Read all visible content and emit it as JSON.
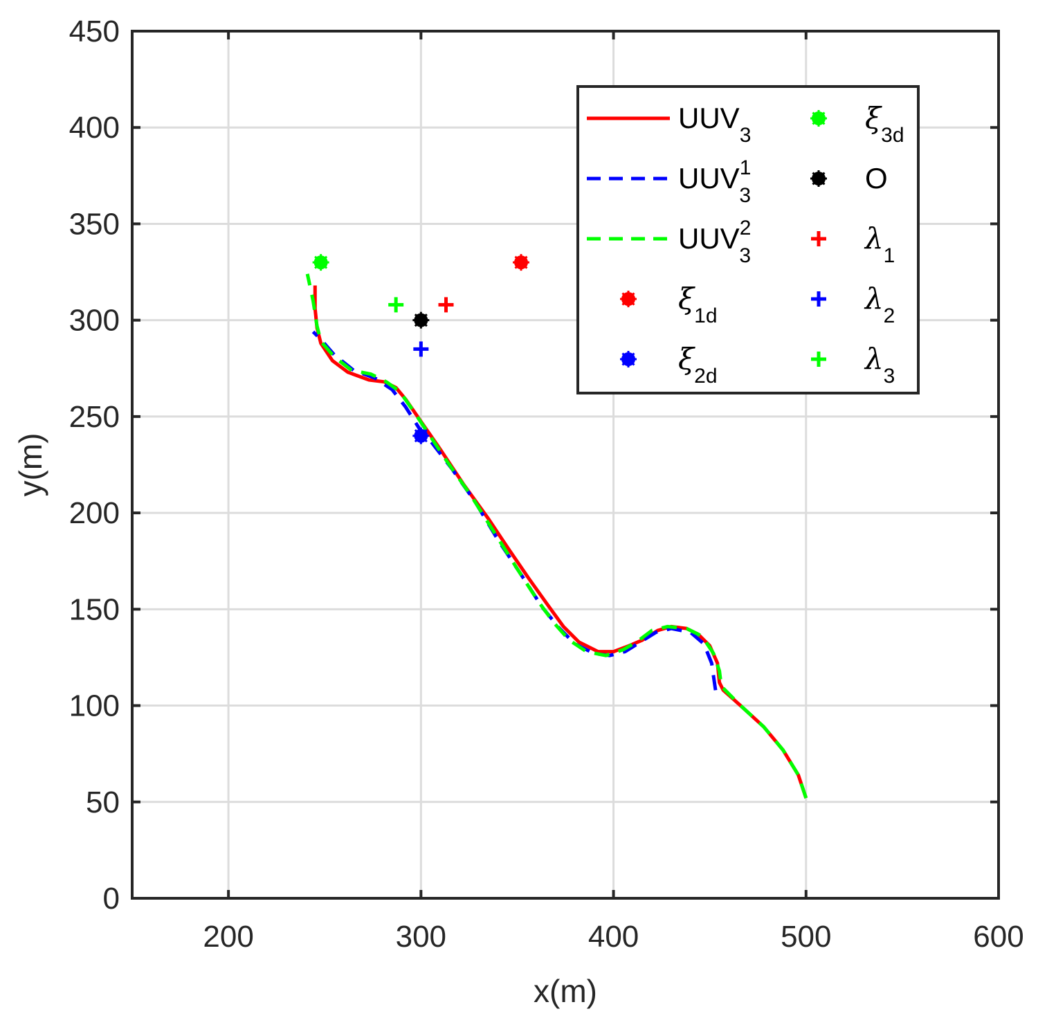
{
  "chart_data": {
    "type": "line",
    "xlabel": "x(m)",
    "ylabel": "y(m)",
    "xlim": [
      150,
      600
    ],
    "ylim": [
      0,
      450
    ],
    "xticks": [
      200,
      300,
      400,
      500,
      600
    ],
    "yticks": [
      0,
      50,
      100,
      150,
      200,
      250,
      300,
      350,
      400,
      450
    ],
    "grid": true,
    "legend_position": "top-right",
    "colors": {
      "red": "#ff0000",
      "blue": "#0000ff",
      "green": "#00ff00",
      "black": "#000000"
    },
    "series": [
      {
        "name": "UUV3",
        "base": "UUV",
        "sub": "3",
        "sup": "",
        "style": "solid",
        "color": "#ff0000",
        "points": [
          [
            500,
            52
          ],
          [
            496,
            64
          ],
          [
            488,
            77
          ],
          [
            478,
            89
          ],
          [
            466,
            100
          ],
          [
            457,
            108
          ],
          [
            455,
            112
          ],
          [
            454,
            122
          ],
          [
            450,
            131
          ],
          [
            444,
            137
          ],
          [
            438,
            140
          ],
          [
            430,
            141
          ],
          [
            423,
            139
          ],
          [
            415,
            134
          ],
          [
            408,
            131
          ],
          [
            400,
            128
          ],
          [
            392,
            128
          ],
          [
            382,
            133
          ],
          [
            374,
            141
          ],
          [
            366,
            152
          ],
          [
            356,
            166
          ],
          [
            345,
            182
          ],
          [
            335,
            197
          ],
          [
            322,
            215
          ],
          [
            310,
            233
          ],
          [
            301,
            246
          ],
          [
            292,
            259
          ],
          [
            287,
            265
          ],
          [
            281,
            268
          ],
          [
            273,
            269
          ],
          [
            262,
            273
          ],
          [
            254,
            279
          ],
          [
            248,
            288
          ],
          [
            246,
            296
          ],
          [
            245,
            306
          ],
          [
            245,
            318
          ]
        ]
      },
      {
        "name": "UUV3^1",
        "base": "UUV",
        "sub": "3",
        "sup": "1",
        "style": "dashed",
        "color": "#0000ff",
        "points": [
          [
            453,
            108
          ],
          [
            452,
            115
          ],
          [
            451,
            122
          ],
          [
            447,
            132
          ],
          [
            440,
            138
          ],
          [
            430,
            140
          ],
          [
            422,
            138
          ],
          [
            414,
            133
          ],
          [
            406,
            128
          ],
          [
            398,
            126
          ],
          [
            390,
            127
          ],
          [
            380,
            132
          ],
          [
            372,
            140
          ],
          [
            363,
            151
          ],
          [
            352,
            168
          ],
          [
            340,
            186
          ],
          [
            328,
            206
          ],
          [
            316,
            223
          ],
          [
            306,
            236
          ],
          [
            299,
            244
          ],
          [
            292,
            255
          ],
          [
            285,
            264
          ],
          [
            276,
            270
          ],
          [
            265,
            274
          ],
          [
            255,
            282
          ],
          [
            248,
            290
          ],
          [
            244,
            294
          ]
        ]
      },
      {
        "name": "UUV3^2",
        "base": "UUV",
        "sub": "3",
        "sup": "2",
        "style": "dashed",
        "color": "#00ff00",
        "points": [
          [
            500,
            52
          ],
          [
            496,
            64
          ],
          [
            488,
            77
          ],
          [
            478,
            89
          ],
          [
            466,
            100
          ],
          [
            456,
            110
          ],
          [
            455,
            118
          ],
          [
            452,
            127
          ],
          [
            446,
            136
          ],
          [
            438,
            140
          ],
          [
            428,
            141
          ],
          [
            420,
            139
          ],
          [
            412,
            133
          ],
          [
            405,
            129
          ],
          [
            396,
            126
          ],
          [
            386,
            128
          ],
          [
            377,
            134
          ],
          [
            369,
            143
          ],
          [
            361,
            154
          ],
          [
            350,
            171
          ],
          [
            338,
            190
          ],
          [
            326,
            209
          ],
          [
            314,
            226
          ],
          [
            304,
            241
          ],
          [
            296,
            253
          ],
          [
            289,
            263
          ],
          [
            282,
            268
          ],
          [
            274,
            272
          ],
          [
            264,
            274
          ],
          [
            255,
            281
          ],
          [
            248,
            289
          ],
          [
            246,
            297
          ],
          [
            244,
            310
          ],
          [
            241,
            324
          ]
        ]
      }
    ],
    "markers": [
      {
        "name": "ξ1d",
        "base": "ξ",
        "sub": "1d",
        "symbol": "star-dot",
        "color": "#ff0000",
        "x": 352,
        "y": 330
      },
      {
        "name": "ξ2d",
        "base": "ξ",
        "sub": "2d",
        "symbol": "star-dot",
        "color": "#0000ff",
        "x": 300,
        "y": 240
      },
      {
        "name": "ξ3d",
        "base": "ξ",
        "sub": "3d",
        "symbol": "star-dot",
        "color": "#00ff00",
        "x": 248,
        "y": 330
      },
      {
        "name": "O",
        "base": "O",
        "sub": "",
        "symbol": "star-dot",
        "color": "#000000",
        "x": 300,
        "y": 300
      },
      {
        "name": "λ1",
        "base": "λ",
        "sub": "1",
        "symbol": "plus",
        "color": "#ff0000",
        "x": 313,
        "y": 308
      },
      {
        "name": "λ2",
        "base": "λ",
        "sub": "2",
        "symbol": "plus",
        "color": "#0000ff",
        "x": 300,
        "y": 285
      },
      {
        "name": "λ3",
        "base": "λ",
        "sub": "3",
        "symbol": "plus",
        "color": "#00ff00",
        "x": 287,
        "y": 308
      }
    ],
    "legend_order": [
      [
        "UUV3",
        "ξ3d"
      ],
      [
        "UUV3^1",
        "O"
      ],
      [
        "UUV3^2",
        "λ1"
      ],
      [
        "ξ1d",
        "λ2"
      ],
      [
        "ξ2d",
        "λ3"
      ]
    ]
  }
}
